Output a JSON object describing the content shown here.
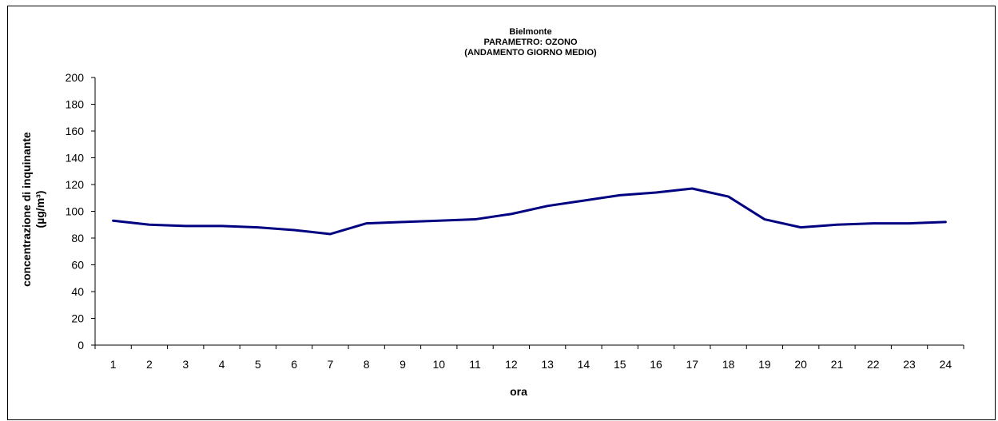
{
  "chart_data": {
    "type": "line",
    "title_lines": [
      "Bielmonte",
      "PARAMETRO: OZONO",
      "(ANDAMENTO GIORNO MEDIO)"
    ],
    "xlabel": "ora",
    "ylabel_lines": [
      "concentrazione di inquinante",
      "(µg/m³)"
    ],
    "categories": [
      "1",
      "2",
      "3",
      "4",
      "5",
      "6",
      "7",
      "8",
      "9",
      "10",
      "11",
      "12",
      "13",
      "14",
      "15",
      "16",
      "17",
      "18",
      "19",
      "20",
      "21",
      "22",
      "23",
      "24"
    ],
    "series": [
      {
        "values": [
          93,
          90,
          89,
          89,
          88,
          86,
          83,
          91,
          92,
          93,
          94,
          98,
          104,
          108,
          112,
          114,
          117,
          111,
          94,
          88,
          90,
          91,
          91,
          92
        ]
      }
    ],
    "ylim": [
      0,
      200
    ],
    "yticks": [
      0,
      20,
      40,
      60,
      80,
      100,
      120,
      140,
      160,
      180,
      200
    ],
    "line_color": "#000080",
    "grid": false,
    "legend": "none"
  }
}
